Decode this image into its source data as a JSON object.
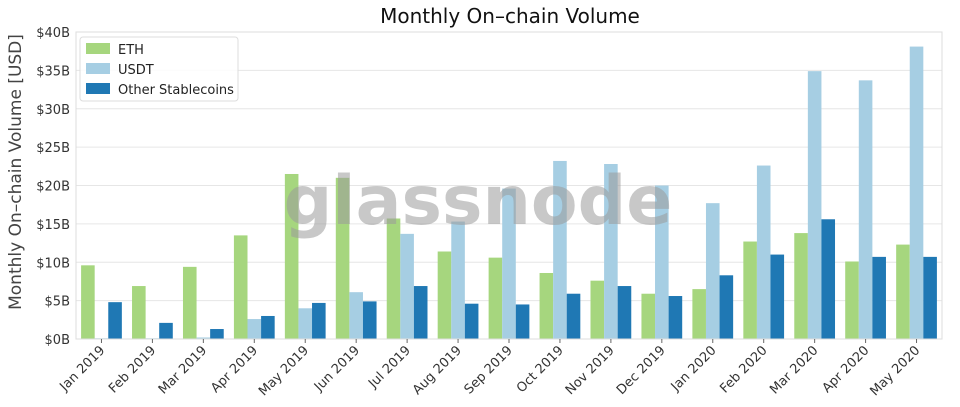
{
  "chart_data": {
    "type": "bar",
    "title": "Monthly On–chain Volume",
    "xlabel": "",
    "ylabel": "Monthly On–chain Volume [USD]",
    "ylim": [
      0,
      40
    ],
    "yticks": [
      0,
      5,
      10,
      15,
      20,
      25,
      30,
      35,
      40
    ],
    "ytick_labels": [
      "$0B",
      "$5B",
      "$10B",
      "$15B",
      "$20B",
      "$25B",
      "$30B",
      "$35B",
      "$40B"
    ],
    "unit": "B USD",
    "grid": true,
    "legend_position": "top-left",
    "categories": [
      "Jan 2019",
      "Feb 2019",
      "Mar 2019",
      "Apr 2019",
      "May 2019",
      "Jun 2019",
      "Jul 2019",
      "Aug 2019",
      "Sep 2019",
      "Oct 2019",
      "Nov 2019",
      "Dec 2019",
      "Jan 2020",
      "Feb 2020",
      "Mar 2020",
      "Apr 2020",
      "May 2020"
    ],
    "series": [
      {
        "name": "ETH",
        "color": "#a6d67e",
        "values": [
          9.6,
          6.9,
          9.4,
          13.5,
          21.5,
          21.0,
          15.7,
          11.4,
          10.6,
          8.6,
          7.6,
          5.9,
          6.5,
          12.7,
          13.8,
          10.1,
          12.3
        ]
      },
      {
        "name": "USDT",
        "color": "#a6cee3",
        "values": [
          0.1,
          0.1,
          0.2,
          2.6,
          4.0,
          6.1,
          13.7,
          15.3,
          19.6,
          23.2,
          22.8,
          20.0,
          17.7,
          22.6,
          34.9,
          33.7,
          38.1
        ]
      },
      {
        "name": "Other Stablecoins",
        "color": "#1f78b4",
        "values": [
          4.8,
          2.1,
          1.3,
          3.0,
          4.7,
          4.9,
          6.9,
          4.6,
          4.5,
          5.9,
          6.9,
          5.6,
          8.3,
          11.0,
          15.6,
          10.7,
          10.7
        ]
      }
    ],
    "watermark": "glassnode"
  }
}
